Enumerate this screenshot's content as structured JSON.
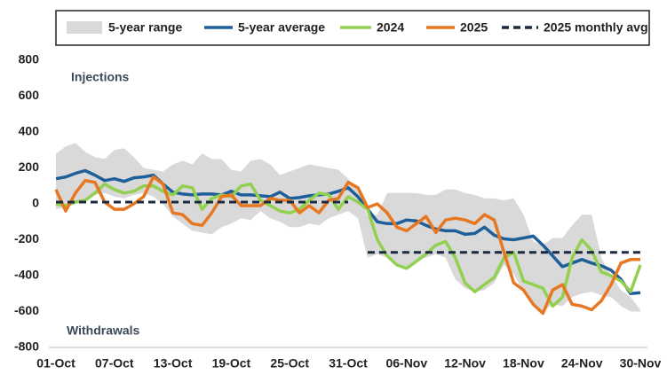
{
  "chart_data": {
    "type": "line",
    "annotations": [
      "Injections",
      "Withdrawals"
    ],
    "categories": [
      "01-Oct",
      null,
      null,
      null,
      null,
      null,
      "07-Oct",
      null,
      null,
      null,
      null,
      null,
      "13-Oct",
      null,
      null,
      null,
      null,
      null,
      "19-Oct",
      null,
      null,
      null,
      null,
      null,
      "25-Oct",
      null,
      null,
      null,
      null,
      null,
      "31-Oct",
      null,
      null,
      null,
      null,
      null,
      "06-Nov",
      null,
      null,
      null,
      null,
      null,
      "12-Nov",
      null,
      null,
      null,
      null,
      null,
      "18-Nov",
      null,
      null,
      null,
      null,
      null,
      "24-Nov",
      null,
      null,
      null,
      null,
      null,
      "30-Nov"
    ],
    "series": [
      {
        "name": "5-year range",
        "color": "#d9d9d9",
        "style": "band",
        "low": [
          -30,
          -20,
          0,
          30,
          50,
          60,
          40,
          30,
          50,
          60,
          40,
          0,
          -70,
          -110,
          -150,
          -160,
          -170,
          -130,
          -110,
          -80,
          -90,
          -40,
          -80,
          -100,
          -130,
          -130,
          -110,
          -120,
          -80,
          -60,
          -40,
          -80,
          -300,
          -280,
          -300,
          -340,
          -360,
          -310,
          -300,
          -280,
          -300,
          -420,
          -470,
          -490,
          -480,
          -440,
          -340,
          -390,
          -490,
          -560,
          -600,
          -560,
          -570,
          -520,
          -500,
          -490,
          -510,
          -520,
          -570,
          -600,
          -600
        ],
        "high": [
          280,
          320,
          340,
          290,
          260,
          250,
          300,
          310,
          260,
          200,
          190,
          180,
          220,
          240,
          220,
          280,
          250,
          250,
          190,
          180,
          240,
          250,
          220,
          160,
          180,
          200,
          220,
          210,
          200,
          190,
          140,
          80,
          -70,
          -60,
          60,
          60,
          60,
          60,
          50,
          50,
          80,
          80,
          60,
          50,
          30,
          30,
          20,
          30,
          -60,
          -210,
          -230,
          -190,
          -190,
          -120,
          -60,
          -60,
          -300,
          -400,
          -480,
          -520,
          -590
        ]
      },
      {
        "name": "5-year average",
        "color": "#1f5f99",
        "values": [
          140,
          150,
          170,
          185,
          160,
          130,
          140,
          125,
          145,
          150,
          160,
          110,
          65,
          55,
          50,
          55,
          55,
          50,
          70,
          50,
          50,
          45,
          40,
          65,
          30,
          35,
          45,
          50,
          55,
          70,
          90,
          40,
          -30,
          -100,
          -110,
          -110,
          -90,
          -95,
          -120,
          -140,
          -150,
          -150,
          -170,
          -165,
          -130,
          -175,
          -195,
          -200,
          -190,
          -180,
          -230,
          -290,
          -350,
          -330,
          -310,
          -330,
          -345,
          -370,
          -420,
          -500,
          -495
        ]
      },
      {
        "name": "2024",
        "color": "#92d050",
        "values": [
          0,
          -10,
          10,
          20,
          60,
          110,
          80,
          60,
          70,
          100,
          100,
          70,
          50,
          100,
          90,
          -30,
          30,
          50,
          40,
          100,
          110,
          20,
          -10,
          -40,
          -50,
          -30,
          20,
          60,
          50,
          -30,
          40,
          10,
          -30,
          -200,
          -290,
          -340,
          -360,
          -320,
          -280,
          -230,
          -210,
          -300,
          -440,
          -490,
          -450,
          -410,
          -300,
          -270,
          -430,
          -450,
          -470,
          -570,
          -520,
          -300,
          -200,
          -260,
          -380,
          -400,
          -430,
          -490,
          -340
        ]
      },
      {
        "name": "2025",
        "color": "#e87722",
        "values": [
          80,
          -40,
          60,
          130,
          120,
          10,
          -30,
          -30,
          0,
          40,
          150,
          110,
          -50,
          -60,
          -110,
          -120,
          -50,
          40,
          50,
          -10,
          -10,
          -10,
          30,
          20,
          20,
          -50,
          -10,
          -50,
          20,
          30,
          120,
          90,
          -20,
          0,
          -50,
          -130,
          -150,
          -110,
          -70,
          -160,
          -90,
          -80,
          -90,
          -110,
          -60,
          -90,
          -270,
          -440,
          -480,
          -560,
          -610,
          -480,
          -450,
          -560,
          -570,
          -590,
          -540,
          -450,
          -330,
          -310,
          -310
        ]
      },
      {
        "name": "2025 monthly avg",
        "color": "#1a2a40",
        "dash": true,
        "values": [
          10,
          10,
          10,
          10,
          10,
          10,
          10,
          10,
          10,
          10,
          10,
          10,
          10,
          10,
          10,
          10,
          10,
          10,
          10,
          10,
          10,
          10,
          10,
          10,
          10,
          10,
          10,
          10,
          10,
          10,
          10,
          null,
          -270,
          -270,
          -270,
          -270,
          -270,
          -270,
          -270,
          -270,
          -270,
          -270,
          -270,
          -270,
          -270,
          -270,
          -270,
          -270,
          -270,
          -270,
          -270,
          -270,
          -270,
          -270,
          -270,
          -270,
          -270,
          -270,
          -270,
          -270,
          -270
        ]
      }
    ],
    "ylim": [
      -800,
      800
    ],
    "yticks": [
      -800,
      -600,
      -400,
      -200,
      0,
      200,
      400,
      600,
      800
    ],
    "grid": false
  }
}
